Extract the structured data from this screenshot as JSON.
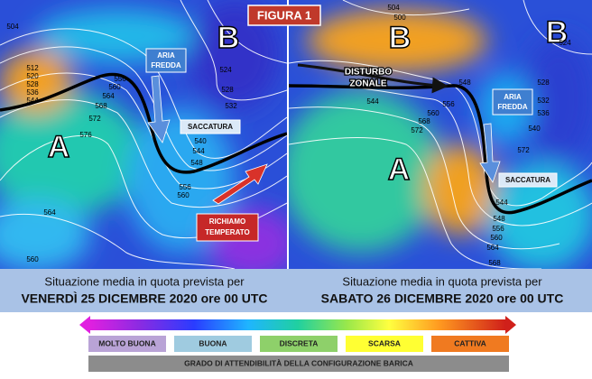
{
  "header": {
    "title": "FIGURA 1"
  },
  "left_map": {
    "pressure_labels": [
      "B",
      "A"
    ],
    "cold_air": [
      "ARIA",
      "FREDDA"
    ],
    "trough": "SACCATURA",
    "warm_advection": [
      "RICHIAMO",
      "TEMPERATO"
    ],
    "contours": [
      "504",
      "512",
      "520",
      "528",
      "536",
      "544",
      "556",
      "560",
      "564",
      "568",
      "572",
      "576",
      "524",
      "528",
      "532",
      "540",
      "544",
      "548",
      "556",
      "560",
      "564",
      "560"
    ],
    "caption": [
      "Situazione media in quota prevista per",
      "VENERDÌ 25 DICEMBRE 2020 ore 00 UTC"
    ]
  },
  "right_map": {
    "pressure_labels": [
      "B",
      "B",
      "A"
    ],
    "zonal_disturbance": [
      "DISTURBO",
      "ZONALE"
    ],
    "cold_air": [
      "ARIA",
      "FREDDA"
    ],
    "trough": "SACCATURA",
    "contours": [
      "504",
      "500",
      "548",
      "544",
      "556",
      "560",
      "568",
      "572",
      "524",
      "528",
      "532",
      "536",
      "540",
      "544",
      "548",
      "556",
      "560",
      "564",
      "568",
      "572"
    ],
    "caption": [
      "Situazione media in quota prevista per",
      "SABATO 26 DICEMBRE 2020 ore 00 UTC"
    ]
  },
  "legend": {
    "categories": [
      "MOLTO BUONA",
      "BUONA",
      "DISCRETA",
      "SCARSA",
      "CATTIVA"
    ],
    "footer": "GRADO DI ATTENDIBILITÀ DELLA CONFIGURAZIONE BARICA"
  }
}
